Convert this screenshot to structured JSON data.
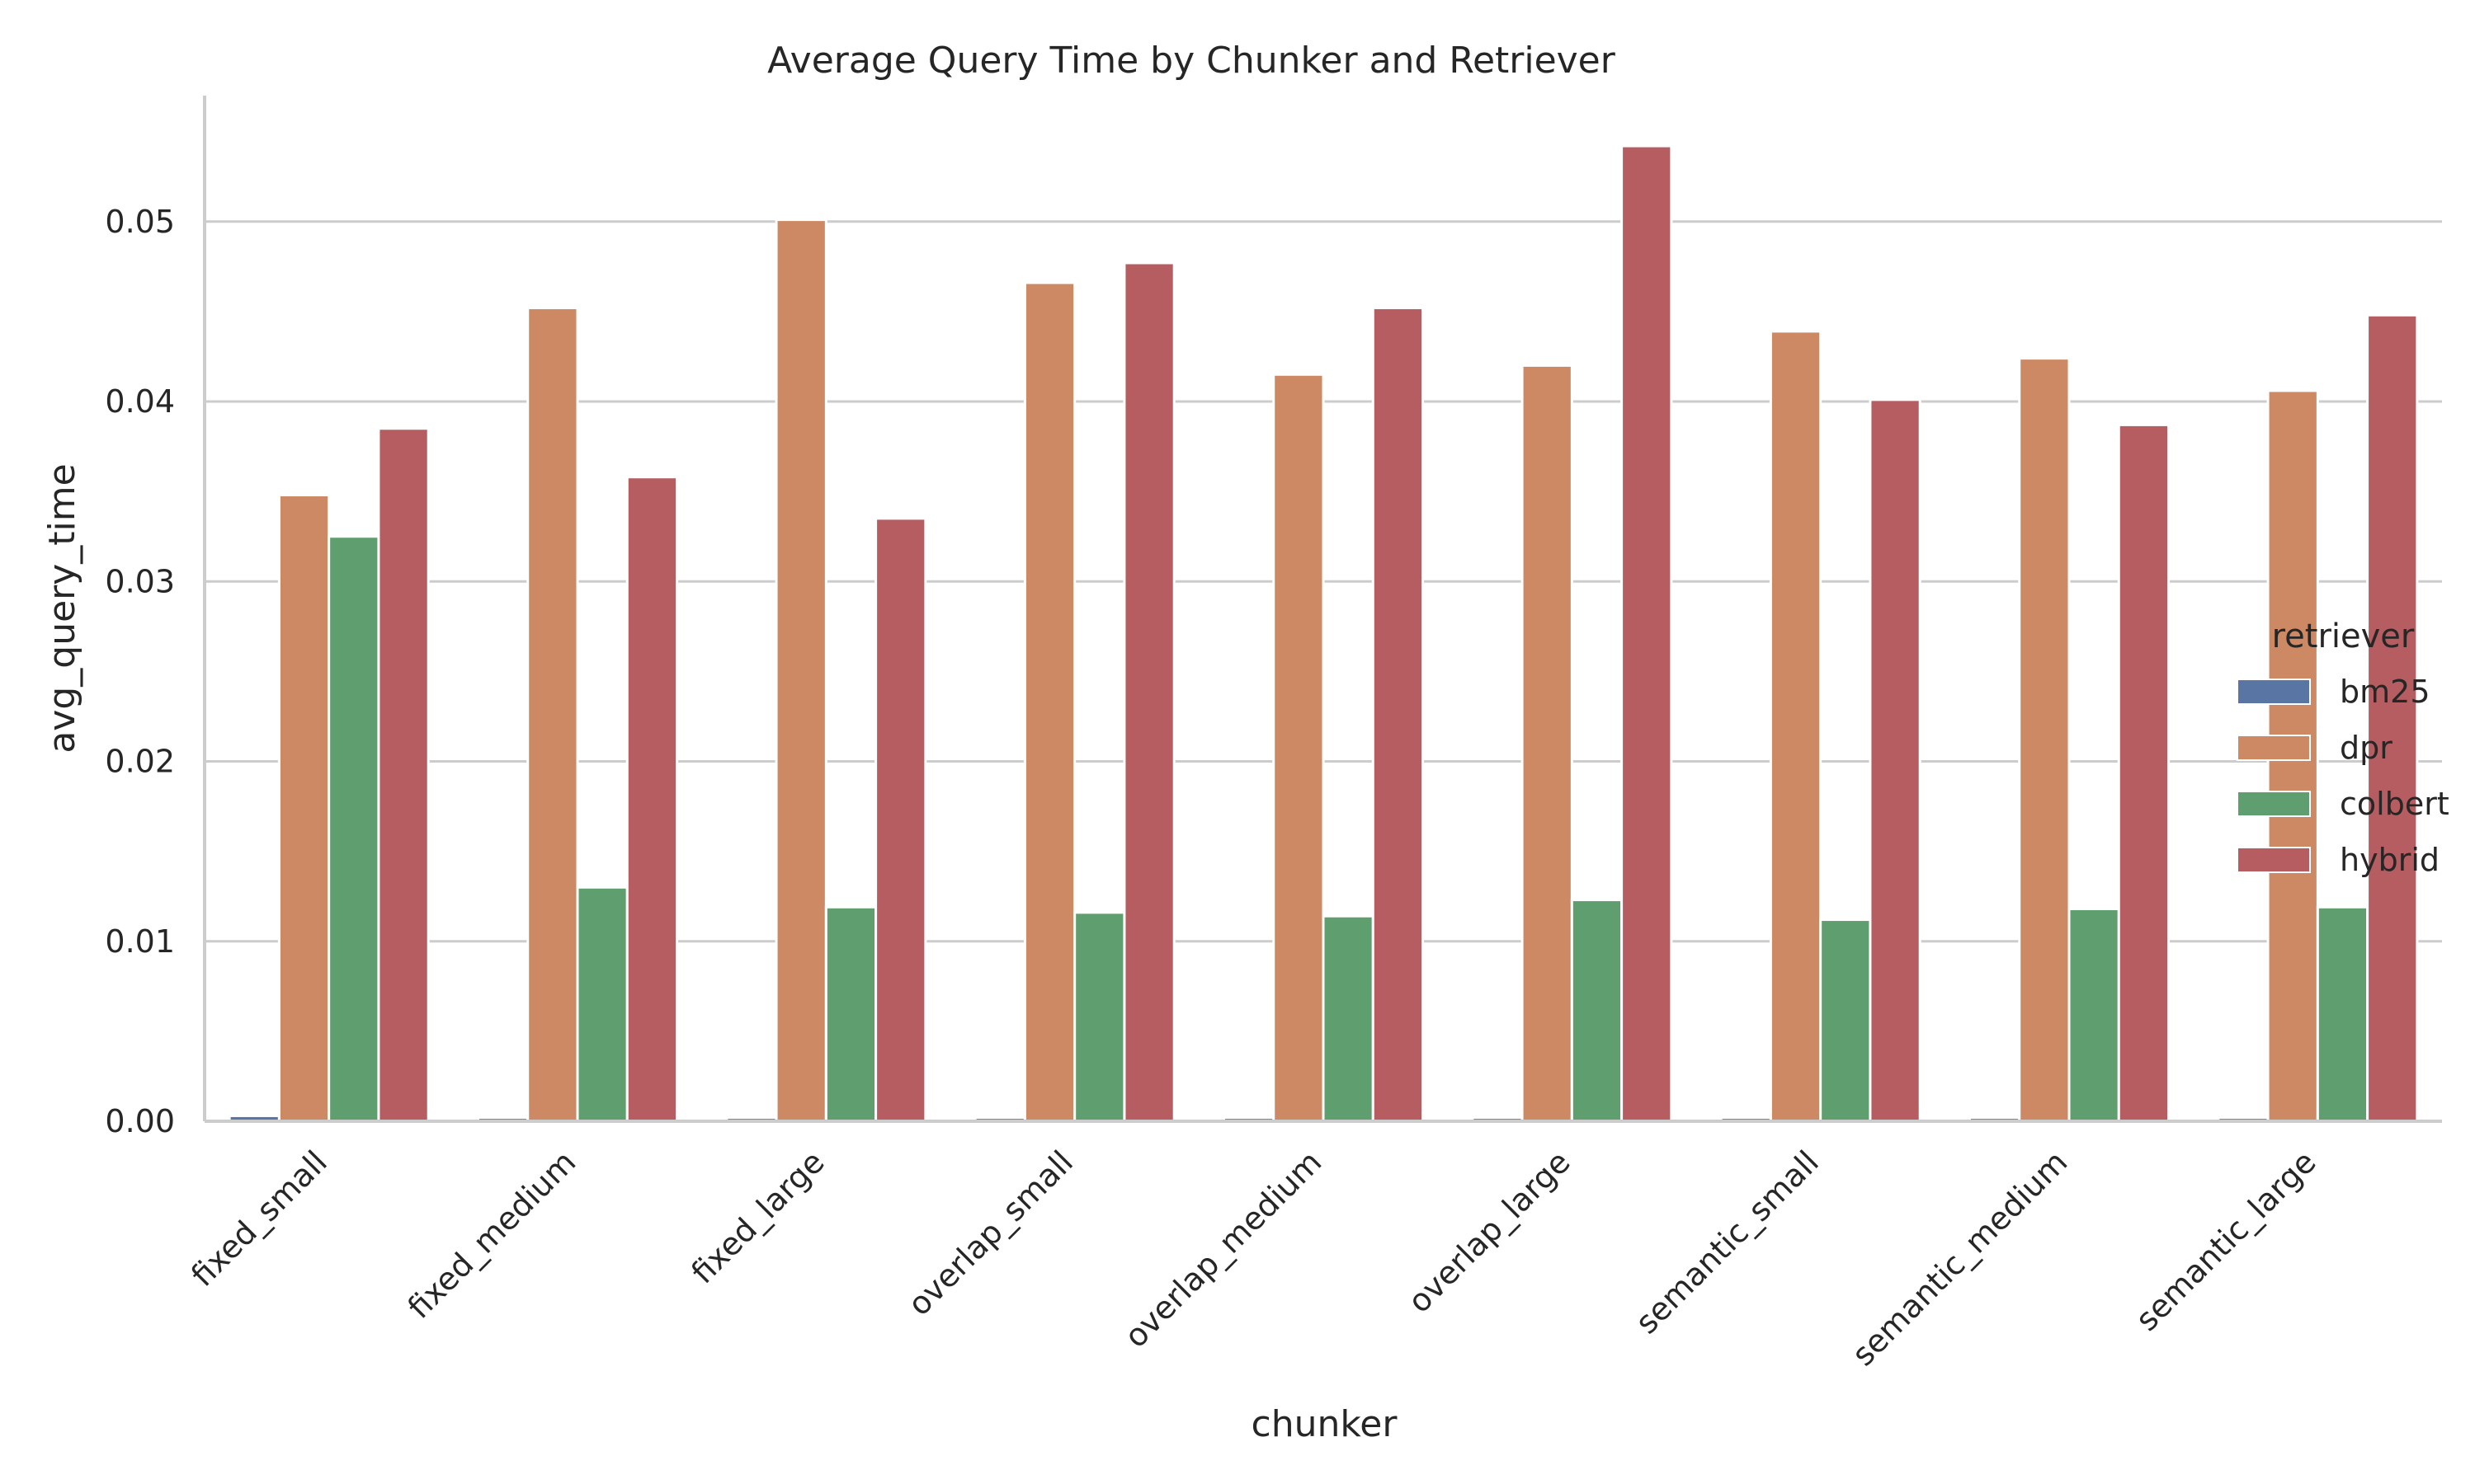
{
  "chart_data": {
    "type": "bar",
    "title": "Average Query Time by Chunker and Retriever",
    "xlabel": "chunker",
    "ylabel": "avg_query_time",
    "ylim": [
      0,
      0.057
    ],
    "yticks": [
      "0.00",
      "0.01",
      "0.02",
      "0.03",
      "0.04",
      "0.05"
    ],
    "ytick_values": [
      0,
      0.01,
      0.02,
      0.03,
      0.04,
      0.05
    ],
    "grid": true,
    "legend_title": "retriever",
    "legend_position": "right",
    "categories": [
      "fixed_small",
      "fixed_medium",
      "fixed_large",
      "overlap_small",
      "overlap_medium",
      "overlap_large",
      "semantic_small",
      "semantic_medium",
      "semantic_large"
    ],
    "series": [
      {
        "name": "bm25",
        "color": "#5875a4",
        "values": [
          0.0003,
          0.0002,
          0.0002,
          0.0002,
          0.0002,
          0.0002,
          0.0002,
          0.0002,
          0.0002
        ]
      },
      {
        "name": "dpr",
        "color": "#cc8963",
        "values": [
          0.0348,
          0.0452,
          0.0501,
          0.0466,
          0.0415,
          0.042,
          0.0439,
          0.0424,
          0.0406
        ]
      },
      {
        "name": "colbert",
        "color": "#5f9e6e",
        "values": [
          0.0325,
          0.013,
          0.0119,
          0.0116,
          0.0114,
          0.0123,
          0.0112,
          0.0118,
          0.0119
        ]
      },
      {
        "name": "hybrid",
        "color": "#b55d60",
        "values": [
          0.0385,
          0.0358,
          0.0335,
          0.0477,
          0.0452,
          0.0542,
          0.0401,
          0.0387,
          0.0448
        ]
      }
    ]
  }
}
